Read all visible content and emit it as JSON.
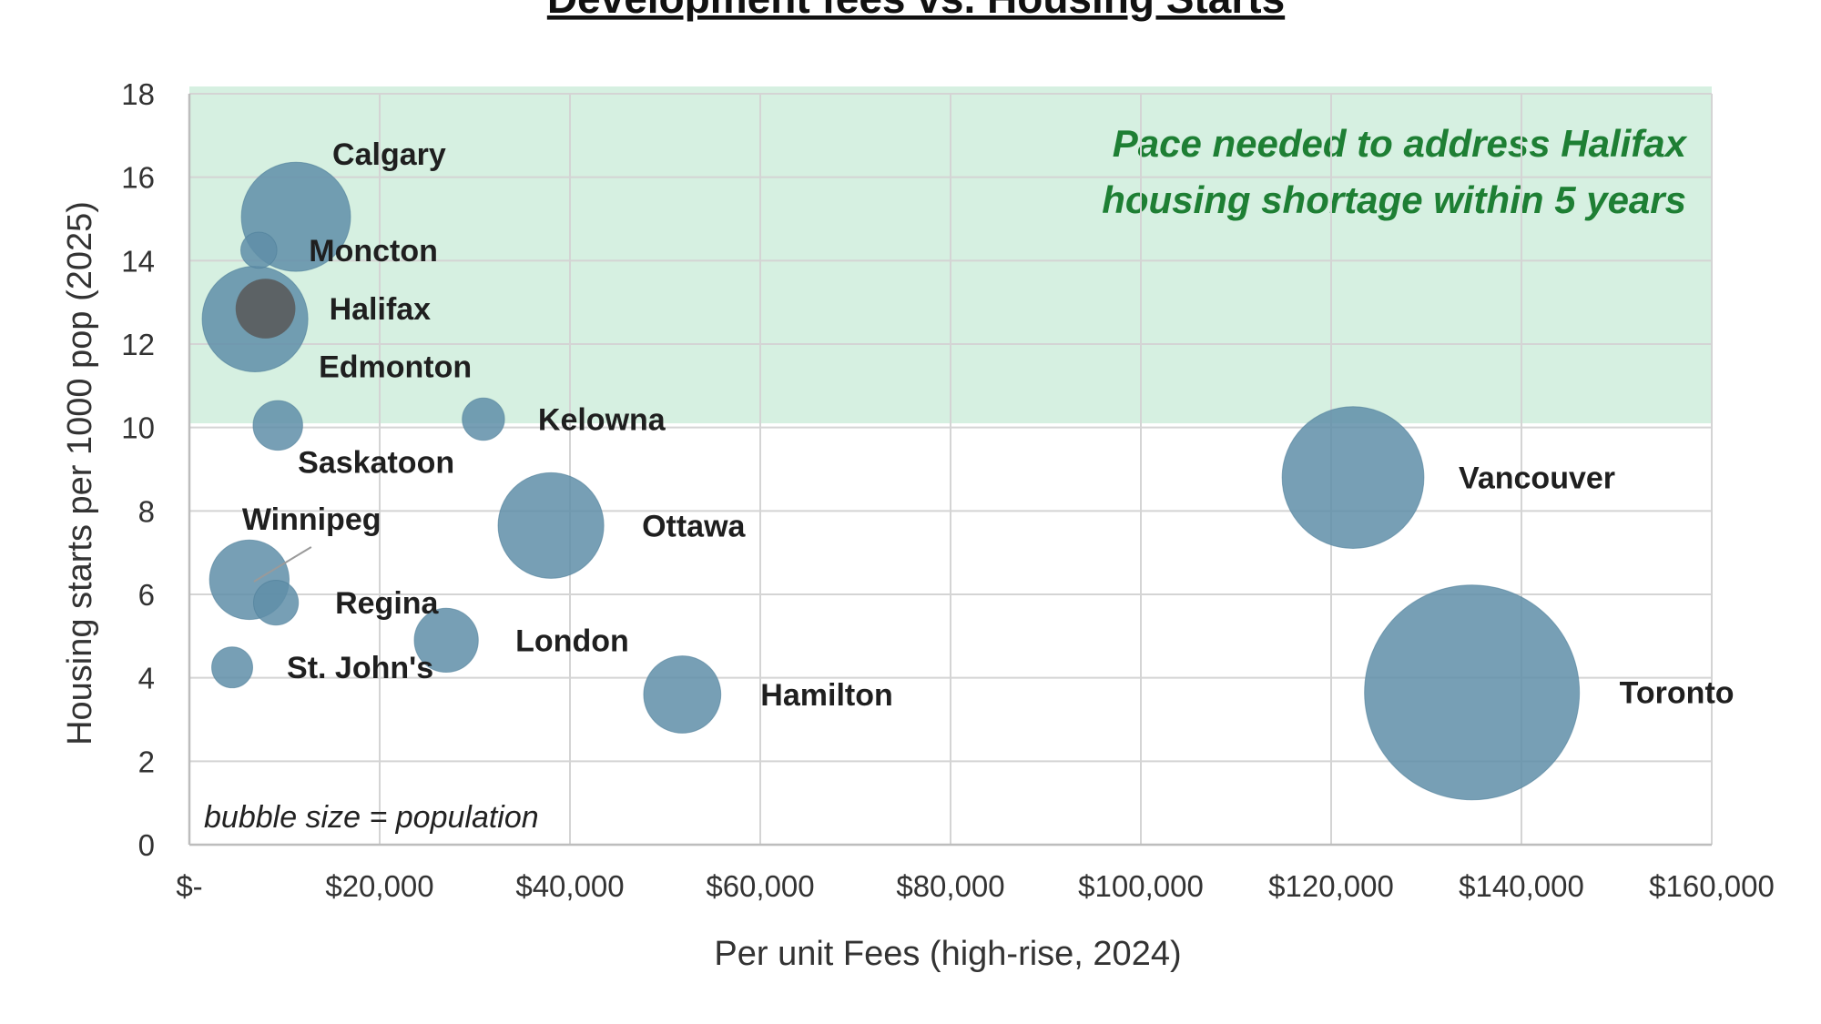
{
  "chart_data": {
    "type": "scatter",
    "subtype": "bubble",
    "title": "Development fees vs. Housing Starts",
    "xlabel": "Per unit Fees (high-rise, 2024)",
    "ylabel": "Housing starts per 1000 pop (2025)",
    "xlim": [
      0,
      160000
    ],
    "ylim": [
      0,
      18
    ],
    "xticks": [
      0,
      20000,
      40000,
      60000,
      80000,
      100000,
      120000,
      140000,
      160000
    ],
    "xtick_labels": [
      "$-",
      "$20,000",
      "$40,000",
      "$60,000",
      "$80,000",
      "$100,000",
      "$120,000",
      "$140,000",
      "$160,000"
    ],
    "yticks": [
      0,
      2,
      4,
      6,
      8,
      10,
      12,
      14,
      16,
      18
    ],
    "ytick_labels": [
      "0",
      "2",
      "4",
      "6",
      "8",
      "10",
      "12",
      "14",
      "16",
      "18"
    ],
    "grid": true,
    "target_band": {
      "y_from": 10.1,
      "y_to": 18,
      "color": "#d6f0e1",
      "label_lines": [
        "Pace needed to address Halifax",
        "housing shortage within 5 years"
      ]
    },
    "note": "bubble size = population",
    "bubble_color": "#5f8ea8",
    "highlight_color": "#585858",
    "points": [
      {
        "name": "Toronto",
        "x": 134800,
        "y": 3.65,
        "population": 6200
      },
      {
        "name": "Vancouver",
        "x": 122300,
        "y": 8.8,
        "population": 2700
      },
      {
        "name": "Calgary",
        "x": 11200,
        "y": 15.05,
        "population": 1600
      },
      {
        "name": "Edmonton",
        "x": 6900,
        "y": 12.6,
        "population": 1500
      },
      {
        "name": "Ottawa",
        "x": 38000,
        "y": 7.65,
        "population": 1500
      },
      {
        "name": "Winnipeg",
        "x": 6300,
        "y": 6.35,
        "population": 850
      },
      {
        "name": "Hamilton",
        "x": 51800,
        "y": 3.6,
        "population": 800
      },
      {
        "name": "London",
        "x": 27000,
        "y": 4.9,
        "population": 550
      },
      {
        "name": "Halifax",
        "x": 8000,
        "y": 12.85,
        "population": 480,
        "highlight": true
      },
      {
        "name": "Saskatoon",
        "x": 9300,
        "y": 10.05,
        "population": 330
      },
      {
        "name": "Regina",
        "x": 9100,
        "y": 5.8,
        "population": 270
      },
      {
        "name": "Kelowna",
        "x": 30900,
        "y": 10.2,
        "population": 240
      },
      {
        "name": "St. John's",
        "x": 4500,
        "y": 4.25,
        "population": 225
      },
      {
        "name": "Moncton",
        "x": 7300,
        "y": 14.25,
        "population": 175
      }
    ]
  }
}
